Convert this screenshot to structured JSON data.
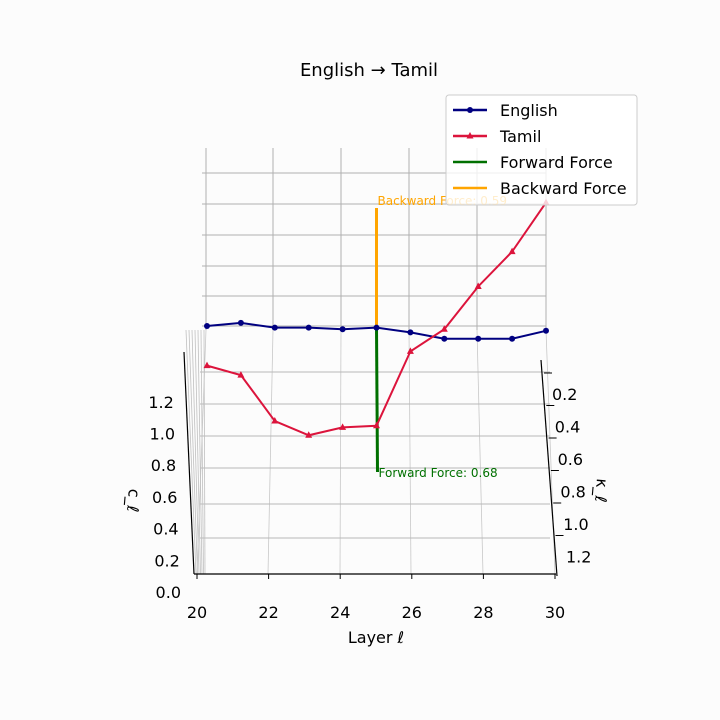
{
  "chart_data": {
    "type": "line",
    "projection": "3d",
    "title": "English → Tamil",
    "xlabel": "Layer ℓ",
    "ylabel": "κ_ℓ",
    "zlabel": "c_ℓ",
    "x_ticks": [
      "20",
      "22",
      "24",
      "26",
      "28",
      "30"
    ],
    "y_ticks": [
      "0.2",
      "0.4",
      "0.6",
      "0.8",
      "1.0",
      "1.2"
    ],
    "z_ticks": [
      "0.0",
      "0.2",
      "0.4",
      "0.6",
      "0.8",
      "1.0",
      "1.2"
    ],
    "xlim": [
      20,
      30
    ],
    "grid": true,
    "legend_position": "top-right",
    "x": [
      20,
      21,
      22,
      23,
      24,
      25,
      26,
      27,
      28,
      29,
      30
    ],
    "series": [
      {
        "name": "English",
        "color": "#000080",
        "marker": "circle",
        "values": [
          1.68,
          1.7,
          1.67,
          1.67,
          1.66,
          1.67,
          1.64,
          1.6,
          1.6,
          1.6,
          1.65
        ]
      },
      {
        "name": "Tamil",
        "color": "#dc143c",
        "marker": "triangle",
        "values": [
          1.43,
          1.37,
          1.08,
          0.99,
          1.04,
          1.05,
          1.52,
          1.66,
          1.93,
          2.15,
          2.46
        ]
      }
    ],
    "forces": [
      {
        "name": "Forward Force",
        "color": "#007000",
        "layer": 25,
        "label": "Forward Force: 0.68",
        "value": 0.68
      },
      {
        "name": "Backward Force",
        "color": "#ffa500",
        "layer": 25,
        "label": "Backward Force: 0.59",
        "value": 0.59
      }
    ]
  }
}
